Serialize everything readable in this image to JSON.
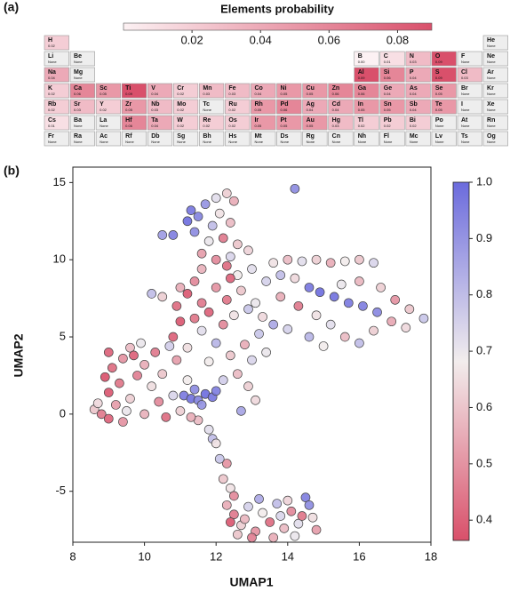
{
  "chart_data": [
    {
      "type": "heatmap",
      "panel_label": "(a)",
      "colorbar_title": "Elements probability",
      "clim": [
        0,
        0.09
      ],
      "cticks": [
        0.02,
        0.04,
        0.06,
        0.08
      ],
      "colormap": [
        "#fcf1f3",
        "#d9506b"
      ],
      "missing_color": "#eeeeee",
      "rows": [
        [
          {
            "symbol": "H",
            "value": 0.02
          },
          null,
          null,
          null,
          null,
          null,
          null,
          null,
          null,
          null,
          null,
          null,
          null,
          null,
          null,
          null,
          null,
          {
            "symbol": "He",
            "value": "None"
          }
        ],
        [
          {
            "symbol": "Li",
            "value": "None"
          },
          {
            "symbol": "Be",
            "value": "None"
          },
          null,
          null,
          null,
          null,
          null,
          null,
          null,
          null,
          null,
          null,
          {
            "symbol": "B",
            "value": {
              "value": 0,
              "label": "0.00"
            }
          },
          {
            "symbol": "C",
            "value": 0.01
          },
          {
            "symbol": "N",
            "value": 0.03
          },
          {
            "symbol": "O",
            "value": 0.09
          },
          {
            "symbol": "F",
            "value": "None"
          },
          {
            "symbol": "Ne",
            "value": "None"
          }
        ],
        [
          {
            "symbol": "Na",
            "value": 0.04
          },
          {
            "symbol": "Mg",
            "value": "None"
          },
          null,
          null,
          null,
          null,
          null,
          null,
          null,
          null,
          null,
          null,
          {
            "symbol": "Al",
            "value": 0.09
          },
          {
            "symbol": "Si",
            "value": 0.06
          },
          {
            "symbol": "P",
            "value": 0.04
          },
          {
            "symbol": "S",
            "value": 0.09
          },
          {
            "symbol": "Cl",
            "value": 0.03
          },
          {
            "symbol": "Ar",
            "value": "None"
          }
        ],
        [
          {
            "symbol": "K",
            "value": 0.02
          },
          {
            "symbol": "Ca",
            "value": 0.06
          },
          {
            "symbol": "Sc",
            "value": 0.05
          },
          {
            "symbol": "Ti",
            "value": 0.09
          },
          {
            "symbol": "V",
            "value": 0.04
          },
          {
            "symbol": "Cr",
            "value": 0.02
          },
          {
            "symbol": "Mn",
            "value": 0.03
          },
          {
            "symbol": "Fe",
            "value": 0.03
          },
          {
            "symbol": "Co",
            "value": 0.04
          },
          {
            "symbol": "Ni",
            "value": 0.05
          },
          {
            "symbol": "Cu",
            "value": 0.05
          },
          {
            "symbol": "Zn",
            "value": 0.06
          },
          {
            "symbol": "Ga",
            "value": 0.06
          },
          {
            "symbol": "Ge",
            "value": 0.04
          },
          {
            "symbol": "As",
            "value": 0.04
          },
          {
            "symbol": "Se",
            "value": 0.05
          },
          {
            "symbol": "Br",
            "value": "None"
          },
          {
            "symbol": "Kr",
            "value": "None"
          }
        ],
        [
          {
            "symbol": "Rb",
            "value": 0.02
          },
          {
            "symbol": "Sr",
            "value": 0.03
          },
          {
            "symbol": "Y",
            "value": 0.02
          },
          {
            "symbol": "Zr",
            "value": 0.05
          },
          {
            "symbol": "Nb",
            "value": 0.03
          },
          {
            "symbol": "Mo",
            "value": 0.02
          },
          {
            "symbol": "Tc",
            "value": "None"
          },
          {
            "symbol": "Ru",
            "value": 0.02
          },
          {
            "symbol": "Rh",
            "value": 0.05
          },
          {
            "symbol": "Pd",
            "value": 0.06
          },
          {
            "symbol": "Ag",
            "value": 0.04
          },
          {
            "symbol": "Cd",
            "value": 0.04
          },
          {
            "symbol": "In",
            "value": 0.05
          },
          {
            "symbol": "Sn",
            "value": 0.05
          },
          {
            "symbol": "Sb",
            "value": 0.04
          },
          {
            "symbol": "Te",
            "value": 0.05
          },
          {
            "symbol": "I",
            "value": "None"
          },
          {
            "symbol": "Xe",
            "value": "None"
          }
        ],
        [
          {
            "symbol": "Cs",
            "value": 0.01
          },
          {
            "symbol": "Ba",
            "value": "None"
          },
          {
            "symbol": "La",
            "value": "None"
          },
          {
            "symbol": "Hf",
            "value": 0.06
          },
          {
            "symbol": "Ta",
            "value": 0.04
          },
          {
            "symbol": "W",
            "value": 0.02
          },
          {
            "symbol": "Re",
            "value": 0.02
          },
          {
            "symbol": "Os",
            "value": 0.02
          },
          {
            "symbol": "Ir",
            "value": 0.05
          },
          {
            "symbol": "Pt",
            "value": 0.05
          },
          {
            "symbol": "Au",
            "value": 0.05
          },
          {
            "symbol": "Hg",
            "value": 0.03
          },
          {
            "symbol": "Tl",
            "value": 0.02
          },
          {
            "symbol": "Pb",
            "value": 0.02
          },
          {
            "symbol": "Bi",
            "value": 0.02
          },
          {
            "symbol": "Po",
            "value": "None"
          },
          {
            "symbol": "At",
            "value": "None"
          },
          {
            "symbol": "Rn",
            "value": "None"
          }
        ],
        [
          {
            "symbol": "Fr",
            "value": "None"
          },
          {
            "symbol": "Ra",
            "value": "None"
          },
          {
            "symbol": "Ac",
            "value": "None"
          },
          {
            "symbol": "Rf",
            "value": "None"
          },
          {
            "symbol": "Db",
            "value": "None"
          },
          {
            "symbol": "Sg",
            "value": "None"
          },
          {
            "symbol": "Bh",
            "value": "None"
          },
          {
            "symbol": "Hs",
            "value": "None"
          },
          {
            "symbol": "Mt",
            "value": "None"
          },
          {
            "symbol": "Ds",
            "value": "None"
          },
          {
            "symbol": "Rg",
            "value": "None"
          },
          {
            "symbol": "Cn",
            "value": "None"
          },
          {
            "symbol": "Nh",
            "value": "None"
          },
          {
            "symbol": "Fl",
            "value": "None"
          },
          {
            "symbol": "Mc",
            "value": "None"
          },
          {
            "symbol": "Lv",
            "value": "None"
          },
          {
            "symbol": "Ts",
            "value": "None"
          },
          {
            "symbol": "Og",
            "value": "None"
          }
        ]
      ]
    },
    {
      "type": "scatter",
      "panel_label": "(b)",
      "xlabel": "UMAP1",
      "ylabel": "UMAP2",
      "xlim": [
        8,
        18
      ],
      "ylim": [
        -8.3,
        16
      ],
      "xticks": [
        8,
        10,
        12,
        14,
        16,
        18
      ],
      "yticks": [
        -5,
        0,
        5,
        10,
        15
      ],
      "clim": [
        0.364,
        1
      ],
      "cticks": [
        0.4,
        0.5,
        0.6,
        0.7,
        0.8,
        0.9,
        {
          "value": 1,
          "label": "1.0"
        }
      ],
      "colormap": [
        "#d9506a",
        "#f2eded",
        "#6b6bdd"
      ],
      "edge_color": "#444444",
      "x": [
        12.3,
        12.5,
        12.7,
        12.9,
        13.1,
        13.3,
        13.5,
        13.7,
        13.9,
        14.1,
        14.3,
        14.5,
        14.6,
        14.7,
        14.8,
        12.6,
        13.0,
        13.6,
        14.2,
        12.4,
        13.2,
        14.0,
        14.4,
        12.8,
        12.2,
        12.3,
        12.1,
        12.4,
        12.5,
        13.8,
        8.6,
        8.8,
        9.0,
        9.2,
        9.0,
        9.3,
        9.1,
        9.4,
        9.0,
        9.6,
        9.9,
        9.6,
        9.8,
        10.0,
        10.2,
        10.4,
        10.0,
        10.6,
        10.8,
        10.5,
        10.9,
        11.2,
        11.5,
        11.8,
        11.9,
        12.0,
        9.4,
        8.9,
        9.5,
        10.3,
        11.0,
        10.7,
        9.7,
        11.3,
        8.7,
        11.1,
        11.3,
        11.5,
        11.7,
        11.9,
        11.4,
        12.0,
        11.6,
        10.8,
        11.2,
        11.6,
        12.0,
        12.4,
        12.8,
        13.2,
        12.2,
        11.8,
        12.6,
        13.0,
        12.9,
        13.4,
        11.4,
        12.5,
        13.6,
        11.0,
        12.2,
        13.1,
        12.7,
        10.9,
        11.2,
        11.6,
        12.0,
        12.3,
        12.7,
        13.1,
        13.4,
        11.4,
        12.6,
        11.8,
        12.9,
        13.3,
        11.0,
        10.5,
        10.2,
        12.4,
        13.0,
        11.3,
        11.5,
        11.2,
        11.7,
        12.0,
        12.3,
        12.5,
        12.1,
        11.9,
        12.4,
        11.8,
        12.2,
        12.6,
        11.6,
        12.0,
        12.4,
        12.9,
        10.8,
        10.5,
        11.4,
        12.3,
        11.6,
        13.6,
        14.0,
        14.4,
        14.8,
        15.2,
        15.6,
        16.0,
        16.4,
        13.8,
        14.2,
        14.6,
        14.9,
        15.3,
        15.7,
        16.1,
        16.5,
        15.5,
        16.0,
        16.6,
        17.0,
        17.4,
        17.8,
        13.8,
        14.3,
        14.8,
        15.2,
        15.6,
        16.0,
        16.4,
        16.9,
        17.3,
        14.0,
        14.6,
        15.0,
        14.2
      ],
      "y": [
        -5.9,
        -6.5,
        -7.2,
        -6.0,
        -7.6,
        -6.4,
        -7.0,
        -5.8,
        -7.4,
        -6.3,
        -7.1,
        -5.4,
        -5.9,
        -6.7,
        -7.5,
        -7.8,
        -8.0,
        -8.0,
        -7.9,
        -7.0,
        -5.5,
        -5.6,
        -6.6,
        -6.8,
        -4.2,
        -3.2,
        -2.9,
        -4.8,
        -5.3,
        -6.6,
        0.3,
        0.0,
        -0.3,
        0.6,
        1.4,
        2.0,
        3.0,
        3.6,
        4.0,
        4.3,
        4.6,
        1.0,
        2.5,
        3.2,
        1.8,
        0.8,
        0.0,
        -0.2,
        1.2,
        2.6,
        3.5,
        2.2,
        -0.4,
        -1.0,
        -1.6,
        -1.9,
        -0.5,
        2.4,
        0.2,
        4.0,
        0.2,
        4.4,
        3.8,
        -0.2,
        0.7,
        1.2,
        1.0,
        0.9,
        1.3,
        1.1,
        1.6,
        1.5,
        0.6,
        5.0,
        4.3,
        5.4,
        4.6,
        3.8,
        4.5,
        5.2,
        5.8,
        3.4,
        2.6,
        3.5,
        1.8,
        4.0,
        6.2,
        6.4,
        5.8,
        6.0,
        2.2,
        0.9,
        0.2,
        7.0,
        7.8,
        7.2,
        8.2,
        7.4,
        8.0,
        7.2,
        8.6,
        8.6,
        9.0,
        6.6,
        6.8,
        6.3,
        8.2,
        7.6,
        7.8,
        8.8,
        9.4,
        13.2,
        12.8,
        12.5,
        13.6,
        14.0,
        14.3,
        13.8,
        13.0,
        12.2,
        12.4,
        11.2,
        11.4,
        11.0,
        10.4,
        10.0,
        10.2,
        10.6,
        11.6,
        11.6,
        11.8,
        9.6,
        9.4,
        9.8,
        10.0,
        9.9,
        10.0,
        9.8,
        9.9,
        10.0,
        9.8,
        9.0,
        8.8,
        8.2,
        7.9,
        7.6,
        7.2,
        7.0,
        6.6,
        8.4,
        8.6,
        8.2,
        7.4,
        6.8,
        6.2,
        7.6,
        7.0,
        6.4,
        5.8,
        5.0,
        4.6,
        5.4,
        6.0,
        5.6,
        5.5,
        5.0,
        4.4,
        14.6
      ],
      "values": [
        0.55,
        0.45,
        0.62,
        0.75,
        0.5,
        0.68,
        0.42,
        0.8,
        0.58,
        0.48,
        0.72,
        0.95,
        0.92,
        0.65,
        0.52,
        0.6,
        0.46,
        0.55,
        0.7,
        0.38,
        0.85,
        0.63,
        0.44,
        0.57,
        0.6,
        0.5,
        0.78,
        0.66,
        0.48,
        0.74,
        0.6,
        0.45,
        0.4,
        0.52,
        0.38,
        0.44,
        0.42,
        0.5,
        0.4,
        0.58,
        0.7,
        0.62,
        0.46,
        0.55,
        0.65,
        0.48,
        0.56,
        0.42,
        0.74,
        0.6,
        0.52,
        0.68,
        0.58,
        0.72,
        0.8,
        0.66,
        0.5,
        0.37,
        0.7,
        0.45,
        0.62,
        0.76,
        0.4,
        0.55,
        0.64,
        0.96,
        0.98,
        0.94,
        0.99,
        0.97,
        0.92,
        0.95,
        0.9,
        0.4,
        0.65,
        0.72,
        0.82,
        0.6,
        0.55,
        0.78,
        0.48,
        0.68,
        0.58,
        0.74,
        0.62,
        0.7,
        0.44,
        0.66,
        0.85,
        0.38,
        0.76,
        0.64,
        0.86,
        0.42,
        0.38,
        0.45,
        0.5,
        0.44,
        0.6,
        0.7,
        0.75,
        0.48,
        0.68,
        0.4,
        0.78,
        0.64,
        0.55,
        0.62,
        0.8,
        0.4,
        0.72,
        0.97,
        0.94,
        0.99,
        0.9,
        0.72,
        0.62,
        0.55,
        0.66,
        0.8,
        0.58,
        0.7,
        0.45,
        0.6,
        0.52,
        0.48,
        0.74,
        0.63,
        0.95,
        0.88,
        0.92,
        0.42,
        0.56,
        0.66,
        0.58,
        0.72,
        0.62,
        0.55,
        0.68,
        0.6,
        0.74,
        0.8,
        0.64,
        0.97,
        0.99,
        0.98,
        0.96,
        0.95,
        0.93,
        0.7,
        0.57,
        0.62,
        0.5,
        0.6,
        0.78,
        0.55,
        0.45,
        0.66,
        0.72,
        0.58,
        0.8,
        0.62,
        0.54,
        0.64,
        0.75,
        0.82,
        0.68,
        0.92
      ]
    }
  ]
}
